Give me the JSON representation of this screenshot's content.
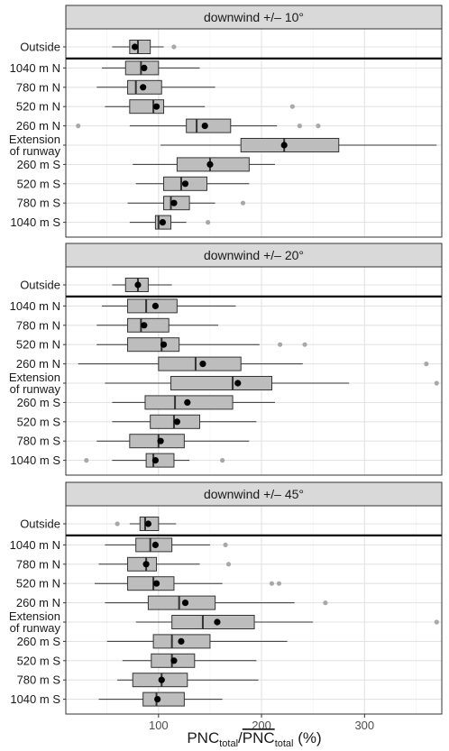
{
  "chart_data": {
    "type": "boxplot",
    "x_axis": {
      "range": [
        10,
        375
      ],
      "ticks": [
        100,
        200,
        300
      ],
      "tick_labels": [
        "100",
        "200",
        "300"
      ],
      "label_main": "PNC",
      "label_sub": "total",
      "label_suffix": " (%)"
    },
    "colors": {
      "box_fill": "#bdbdbd",
      "outlier": "#a8a8a8",
      "mean": "#000000",
      "strip_fill": "#d9d9d9"
    },
    "grid": true,
    "categories": [
      [
        "Outside"
      ],
      [
        "1040 m N"
      ],
      [
        "780 m N"
      ],
      [
        "520 m N"
      ],
      [
        "260 m N"
      ],
      [
        "Extension",
        "of runway"
      ],
      [
        "260 m S"
      ],
      [
        "520 m S"
      ],
      [
        "780 m S"
      ],
      [
        "1040 m S"
      ]
    ],
    "panels": [
      {
        "title": "downwind +/– 10°",
        "boxes": [
          {
            "lo": 55,
            "q1": 72,
            "med": 80,
            "q3": 92,
            "hi": 105,
            "mean": 77,
            "outliers": [
              115
            ]
          },
          {
            "lo": 45,
            "q1": 68,
            "med": 83,
            "q3": 100,
            "hi": 140,
            "mean": 86,
            "outliers": []
          },
          {
            "lo": 40,
            "q1": 70,
            "med": 78,
            "q3": 103,
            "hi": 155,
            "mean": 85,
            "outliers": []
          },
          {
            "lo": 48,
            "q1": 72,
            "med": 95,
            "q3": 105,
            "hi": 145,
            "mean": 98,
            "outliers": [
              230
            ]
          },
          {
            "lo": 72,
            "q1": 127,
            "med": 137,
            "q3": 170,
            "hi": 215,
            "mean": 145,
            "outliers": [
              22,
              237,
              255
            ]
          },
          {
            "lo": 102,
            "q1": 180,
            "med": 222,
            "q3": 275,
            "hi": 370,
            "mean": 222,
            "outliers": []
          },
          {
            "lo": 75,
            "q1": 118,
            "med": 150,
            "q3": 188,
            "hi": 213,
            "mean": 150,
            "outliers": []
          },
          {
            "lo": 78,
            "q1": 105,
            "med": 122,
            "q3": 147,
            "hi": 188,
            "mean": 126,
            "outliers": []
          },
          {
            "lo": 70,
            "q1": 105,
            "med": 112,
            "q3": 130,
            "hi": 155,
            "mean": 115,
            "outliers": [
              182
            ]
          },
          {
            "lo": 72,
            "q1": 97,
            "med": 100,
            "q3": 112,
            "hi": 127,
            "mean": 104,
            "outliers": [
              148
            ]
          }
        ]
      },
      {
        "title": "downwind +/– 20°",
        "boxes": [
          {
            "lo": 55,
            "q1": 68,
            "med": 80,
            "q3": 90,
            "hi": 113,
            "mean": 80,
            "outliers": []
          },
          {
            "lo": 45,
            "q1": 70,
            "med": 88,
            "q3": 118,
            "hi": 175,
            "mean": 97,
            "outliers": []
          },
          {
            "lo": 40,
            "q1": 70,
            "med": 83,
            "q3": 110,
            "hi": 158,
            "mean": 86,
            "outliers": []
          },
          {
            "lo": 40,
            "q1": 70,
            "med": 103,
            "q3": 120,
            "hi": 198,
            "mean": 105,
            "outliers": [
              218,
              242
            ]
          },
          {
            "lo": 22,
            "q1": 100,
            "med": 136,
            "q3": 180,
            "hi": 240,
            "mean": 143,
            "outliers": [
              360
            ]
          },
          {
            "lo": 48,
            "q1": 112,
            "med": 172,
            "q3": 210,
            "hi": 285,
            "mean": 177,
            "outliers": [
              370
            ]
          },
          {
            "lo": 55,
            "q1": 87,
            "med": 116,
            "q3": 172,
            "hi": 213,
            "mean": 128,
            "outliers": []
          },
          {
            "lo": 55,
            "q1": 92,
            "med": 115,
            "q3": 140,
            "hi": 195,
            "mean": 118,
            "outliers": []
          },
          {
            "lo": 40,
            "q1": 72,
            "med": 100,
            "q3": 125,
            "hi": 188,
            "mean": 102,
            "outliers": []
          },
          {
            "lo": 55,
            "q1": 88,
            "med": 95,
            "q3": 115,
            "hi": 130,
            "mean": 97,
            "outliers": [
              30,
              162
            ]
          }
        ]
      },
      {
        "title": "downwind +/– 45°",
        "boxes": [
          {
            "lo": 72,
            "q1": 82,
            "med": 87,
            "q3": 100,
            "hi": 117,
            "mean": 90,
            "outliers": [
              60
            ]
          },
          {
            "lo": 48,
            "q1": 78,
            "med": 92,
            "q3": 113,
            "hi": 150,
            "mean": 97,
            "outliers": [
              165
            ]
          },
          {
            "lo": 42,
            "q1": 70,
            "med": 88,
            "q3": 98,
            "hi": 140,
            "mean": 88,
            "outliers": [
              168
            ]
          },
          {
            "lo": 38,
            "q1": 70,
            "med": 95,
            "q3": 115,
            "hi": 162,
            "mean": 98,
            "outliers": [
              210,
              217
            ]
          },
          {
            "lo": 48,
            "q1": 90,
            "med": 120,
            "q3": 155,
            "hi": 232,
            "mean": 126,
            "outliers": [
              262
            ]
          },
          {
            "lo": 78,
            "q1": 113,
            "med": 143,
            "q3": 193,
            "hi": 250,
            "mean": 157,
            "outliers": [
              370
            ]
          },
          {
            "lo": 50,
            "q1": 95,
            "med": 113,
            "q3": 150,
            "hi": 225,
            "mean": 122,
            "outliers": []
          },
          {
            "lo": 65,
            "q1": 93,
            "med": 113,
            "q3": 135,
            "hi": 195,
            "mean": 115,
            "outliers": []
          },
          {
            "lo": 60,
            "q1": 75,
            "med": 103,
            "q3": 128,
            "hi": 197,
            "mean": 103,
            "outliers": []
          },
          {
            "lo": 42,
            "q1": 85,
            "med": 98,
            "q3": 125,
            "hi": 162,
            "mean": 99,
            "outliers": []
          }
        ]
      }
    ]
  }
}
